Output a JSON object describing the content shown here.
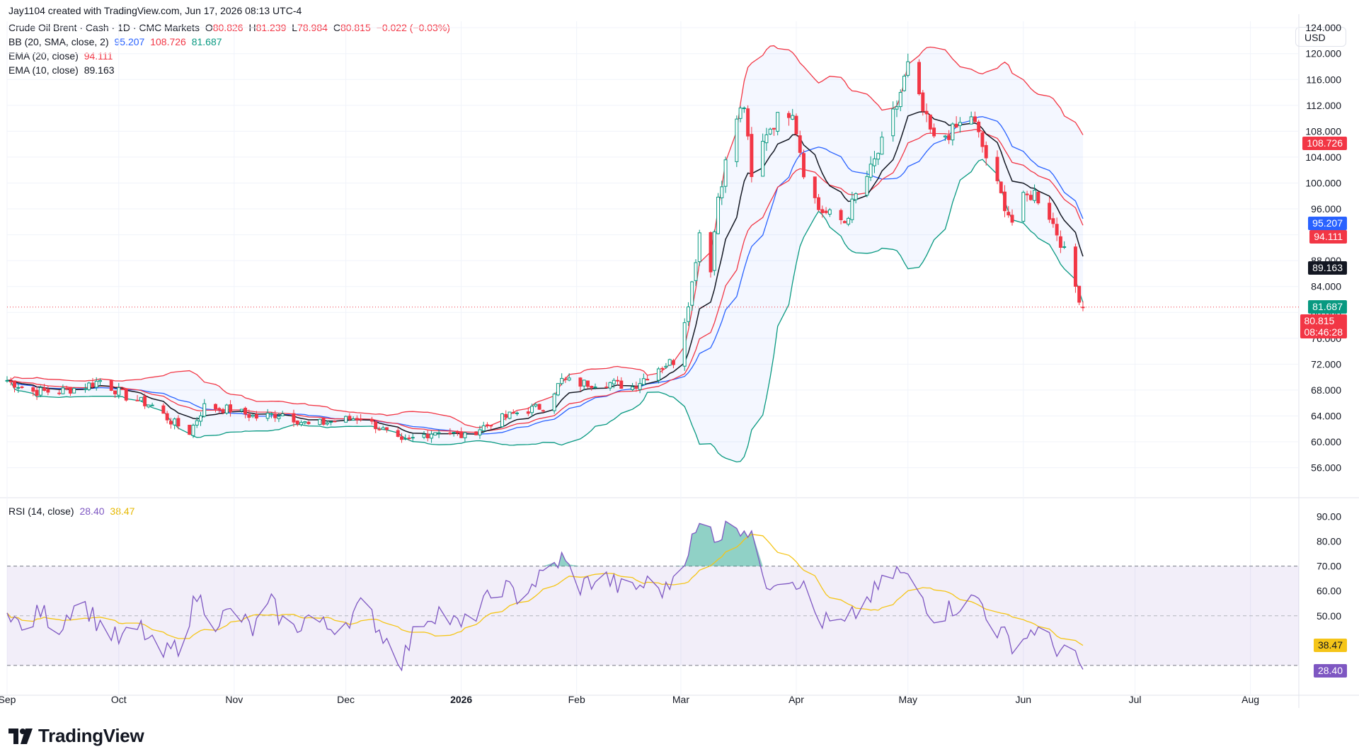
{
  "header": {
    "created_by": "Jay1104 created with TradingView.com, Jun 17, 2026 08:13 UTC-4",
    "symbol": "Crude Oil Brent · Cash · 1D · CMC Markets",
    "ohlc": {
      "o_label": "O",
      "o": "80.826",
      "h_label": "H",
      "h": "81.239",
      "l_label": "L",
      "l": "78.984",
      "c_label": "C",
      "c": "80.815",
      "change": "−0.022 (−0.03%)"
    },
    "bb": {
      "label": "BB (20, SMA, close, 2)",
      "basis": "95.207",
      "upper": "108.726",
      "lower": "81.687"
    },
    "ema20": {
      "label": "EMA (20, close)",
      "value": "94.111"
    },
    "ema10": {
      "label": "EMA (10, close)",
      "value": "89.163"
    },
    "rsi": {
      "label": "RSI (14, close)",
      "value": "28.40",
      "ma": "38.47"
    }
  },
  "currency": "USD",
  "price_tags": {
    "bb_upper": "108.726",
    "bb_basis": "95.207",
    "ema20": "94.111",
    "ema10": "89.163",
    "bb_lower": "81.687",
    "last": "80.815",
    "countdown": "08:46:28"
  },
  "rsi_tags": {
    "ma": "38.47",
    "rsi": "28.40"
  },
  "brand": "TradingView",
  "colors": {
    "up": "#089981",
    "down": "#f23645",
    "bb_upper": "#f23645",
    "bb_basis": "#2962ff",
    "bb_lower": "#089981",
    "ema20": "#f23645",
    "ema10": "#131722",
    "rsi": "#7e57c2",
    "rsi_ma": "#f5c518"
  },
  "chart_data": [
    {
      "type": "candlestick",
      "title": "Crude Oil Brent · Cash · 1D · CMC Markets",
      "ylim": [
        53,
        125
      ],
      "y_ticks": [
        "56.000",
        "60.000",
        "64.000",
        "68.000",
        "72.000",
        "76.000",
        "80.000",
        "84.000",
        "88.000",
        "92.000",
        "96.000",
        "100.000",
        "104.000",
        "108.000",
        "112.000",
        "116.000",
        "120.000",
        "124.000"
      ],
      "x_ticks": [
        "Sep",
        "Oct",
        "Nov",
        "Dec",
        "2026",
        "Feb",
        "Mar",
        "Apr",
        "May",
        "Jun",
        "Jul",
        "Aug"
      ],
      "x_tick_dates": [
        "2025-09-01",
        "2025-10-01",
        "2025-11-01",
        "2025-12-01",
        "2026-01-01",
        "2026-02-01",
        "2026-03-01",
        "2026-04-01",
        "2026-05-01",
        "2026-06-01",
        "2026-07-01",
        "2026-08-01"
      ],
      "x_range": [
        "2025-09-01",
        "2026-08-14"
      ],
      "close_anchors": [
        [
          "2025-09-01",
          69.5
        ],
        [
          "2025-09-08",
          67.8
        ],
        [
          "2025-09-15",
          67.8
        ],
        [
          "2025-09-22",
          68.6
        ],
        [
          "2025-09-26",
          69.5
        ],
        [
          "2025-10-03",
          67.0
        ],
        [
          "2025-10-10",
          65.6
        ],
        [
          "2025-10-15",
          63.2
        ],
        [
          "2025-10-20",
          61.5
        ],
        [
          "2025-10-24",
          65.5
        ],
        [
          "2025-10-31",
          65.0
        ],
        [
          "2025-11-07",
          63.8
        ],
        [
          "2025-11-14",
          64.4
        ],
        [
          "2025-11-21",
          62.6
        ],
        [
          "2025-11-28",
          63.2
        ],
        [
          "2025-12-05",
          63.8
        ],
        [
          "2025-12-10",
          62.2
        ],
        [
          "2025-12-16",
          59.8
        ],
        [
          "2025-12-19",
          60.5
        ],
        [
          "2025-12-26",
          61.8
        ],
        [
          "2026-01-02",
          60.8
        ],
        [
          "2026-01-09",
          63.0
        ],
        [
          "2026-01-16",
          64.5
        ],
        [
          "2026-01-23",
          65.5
        ],
        [
          "2026-01-28",
          69.5
        ],
        [
          "2026-02-02",
          69.0
        ],
        [
          "2026-02-09",
          69.2
        ],
        [
          "2026-02-16",
          68.5
        ],
        [
          "2026-02-23",
          71.5
        ],
        [
          "2026-02-27",
          72.5
        ],
        [
          "2026-03-02",
          79.0
        ],
        [
          "2026-03-04",
          84.5
        ],
        [
          "2026-03-06",
          92.5
        ],
        [
          "2026-03-09",
          87.0
        ],
        [
          "2026-03-11",
          98.0
        ],
        [
          "2026-03-13",
          103.0
        ],
        [
          "2026-03-16",
          110.0
        ],
        [
          "2026-03-18",
          112.0
        ],
        [
          "2026-03-20",
          100.5
        ],
        [
          "2026-03-24",
          108.0
        ],
        [
          "2026-03-27",
          110.0
        ],
        [
          "2026-03-31",
          111.5
        ],
        [
          "2026-04-03",
          102.0
        ],
        [
          "2026-04-07",
          96.0
        ],
        [
          "2026-04-10",
          95.0
        ],
        [
          "2026-04-14",
          94.0
        ],
        [
          "2026-04-17",
          98.0
        ],
        [
          "2026-04-21",
          102.0
        ],
        [
          "2026-04-24",
          106.0
        ],
        [
          "2026-04-28",
          112.0
        ],
        [
          "2026-05-01",
          118.0
        ],
        [
          "2026-05-05",
          111.0
        ],
        [
          "2026-05-08",
          106.5
        ],
        [
          "2026-05-13",
          108.0
        ],
        [
          "2026-05-18",
          110.5
        ],
        [
          "2026-05-22",
          104.0
        ],
        [
          "2026-05-26",
          98.0
        ],
        [
          "2026-05-29",
          94.0
        ],
        [
          "2026-06-01",
          97.5
        ],
        [
          "2026-06-04",
          98.5
        ],
        [
          "2026-06-08",
          95.0
        ],
        [
          "2026-06-11",
          91.0
        ],
        [
          "2026-06-15",
          84.0
        ],
        [
          "2026-06-17",
          80.815
        ]
      ],
      "last_ohlc": {
        "open": 80.826,
        "high": 81.239,
        "low": 78.984,
        "close": 80.815
      },
      "indicators": [
        {
          "name": "BB (20, SMA, close, 2)",
          "lines": [
            "basis",
            "upper",
            "lower"
          ],
          "last": {
            "basis": 95.207,
            "upper": 108.726,
            "lower": 81.687
          }
        },
        {
          "name": "EMA (20, close)",
          "last": 94.111
        },
        {
          "name": "EMA (10, close)",
          "last": 89.163
        }
      ],
      "last_price_line": 80.815
    },
    {
      "type": "line",
      "title": "RSI (14, close)",
      "ylim": [
        20,
        95
      ],
      "y_ticks": [
        "50.00",
        "60.00",
        "70.00",
        "80.00",
        "90.00"
      ],
      "band": [
        30,
        70
      ],
      "midline": 50,
      "series": [
        {
          "name": "RSI",
          "last": 28.4
        },
        {
          "name": "RSI MA",
          "last": 38.47
        }
      ],
      "anchors": [
        [
          "2025-09-01",
          55
        ],
        [
          "2025-09-05",
          43
        ],
        [
          "2025-09-10",
          52
        ],
        [
          "2025-09-15",
          45
        ],
        [
          "2025-09-20",
          58
        ],
        [
          "2025-09-25",
          48
        ],
        [
          "2025-10-01",
          40
        ],
        [
          "2025-10-07",
          45
        ],
        [
          "2025-10-12",
          33
        ],
        [
          "2025-10-17",
          38
        ],
        [
          "2025-10-22",
          58
        ],
        [
          "2025-10-27",
          48
        ],
        [
          "2025-11-01",
          52
        ],
        [
          "2025-11-06",
          44
        ],
        [
          "2025-11-11",
          55
        ],
        [
          "2025-11-16",
          43
        ],
        [
          "2025-11-21",
          50
        ],
        [
          "2025-11-26",
          45
        ],
        [
          "2025-12-01",
          48
        ],
        [
          "2025-12-06",
          55
        ],
        [
          "2025-12-11",
          42
        ],
        [
          "2025-12-16",
          32
        ],
        [
          "2025-12-21",
          48
        ],
        [
          "2025-12-26",
          52
        ],
        [
          "2026-01-01",
          45
        ],
        [
          "2026-01-06",
          53
        ],
        [
          "2026-01-12",
          62
        ],
        [
          "2026-01-16",
          58
        ],
        [
          "2026-01-22",
          65
        ],
        [
          "2026-01-28",
          73
        ],
        [
          "2026-02-02",
          62
        ],
        [
          "2026-02-08",
          66
        ],
        [
          "2026-02-14",
          60
        ],
        [
          "2026-02-20",
          63
        ],
        [
          "2026-02-25",
          60
        ],
        [
          "2026-03-01",
          72
        ],
        [
          "2026-03-04",
          80
        ],
        [
          "2026-03-07",
          88
        ],
        [
          "2026-03-11",
          82
        ],
        [
          "2026-03-15",
          88
        ],
        [
          "2026-03-20",
          84
        ],
        [
          "2026-03-23",
          62
        ],
        [
          "2026-03-28",
          67
        ],
        [
          "2026-04-02",
          64
        ],
        [
          "2026-04-07",
          48
        ],
        [
          "2026-04-14",
          46
        ],
        [
          "2026-04-21",
          58
        ],
        [
          "2026-04-28",
          68
        ],
        [
          "2026-05-03",
          62
        ],
        [
          "2026-05-08",
          50
        ],
        [
          "2026-05-14",
          54
        ],
        [
          "2026-05-20",
          57
        ],
        [
          "2026-05-25",
          44
        ],
        [
          "2026-05-30",
          38
        ],
        [
          "2026-06-04",
          45
        ],
        [
          "2026-06-09",
          38
        ],
        [
          "2026-06-13",
          35
        ],
        [
          "2026-06-17",
          28.4
        ]
      ]
    }
  ]
}
